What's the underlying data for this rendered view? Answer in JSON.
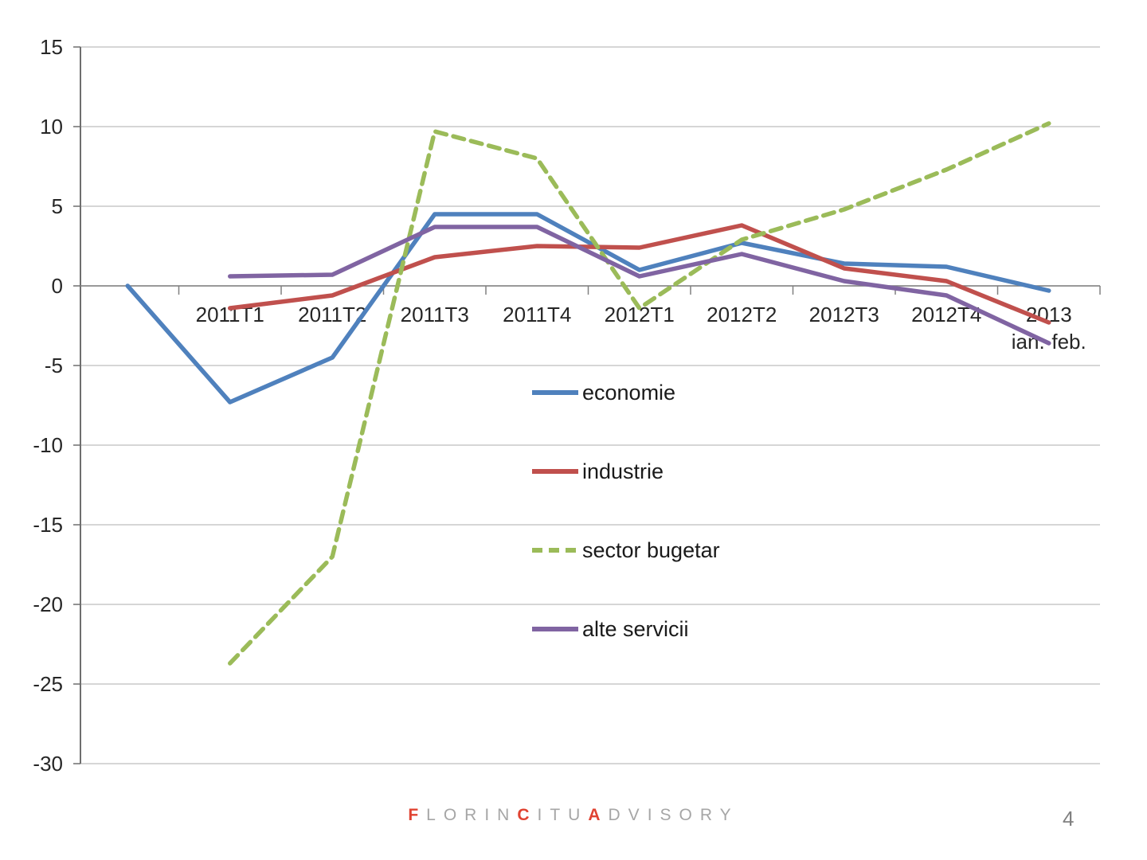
{
  "chart_data": {
    "type": "line",
    "categories": [
      "",
      "2011T1",
      "2011T2",
      "2011T3",
      "2011T4",
      "2012T1",
      "2012T2",
      "2012T3",
      "2012T4",
      "2013 ian.-feb."
    ],
    "series": [
      {
        "name": "economie",
        "color": "#4F81BD",
        "dashed": false,
        "values": [
          0,
          -7.3,
          -4.5,
          4.5,
          4.5,
          1.0,
          2.7,
          1.4,
          1.2,
          -0.3
        ]
      },
      {
        "name": "industrie",
        "color": "#C0504D",
        "dashed": false,
        "values": [
          null,
          -1.4,
          -0.6,
          1.8,
          2.5,
          2.4,
          3.8,
          1.1,
          0.3,
          -2.3
        ]
      },
      {
        "name": "sector bugetar",
        "color": "#9BBB59",
        "dashed": true,
        "values": [
          null,
          -23.7,
          -17.0,
          9.7,
          8.0,
          -1.4,
          2.9,
          4.8,
          7.3,
          10.2
        ]
      },
      {
        "name": "alte servicii",
        "color": "#8064A2",
        "dashed": false,
        "values": [
          null,
          0.6,
          0.7,
          3.7,
          3.7,
          0.6,
          2.0,
          0.3,
          -0.6,
          -3.6
        ]
      }
    ],
    "ylim": [
      -30,
      15
    ],
    "ytick_step": 5,
    "yticks": [
      15,
      10,
      5,
      0,
      -5,
      -10,
      -15,
      -20,
      -25,
      -30
    ],
    "grid": "horizontal",
    "legend_position": "inside-middle",
    "axis_text_color": "#262626",
    "gridline_color": "#C9C9C9",
    "axis_line_color": "#808080"
  },
  "footer": {
    "accent_color": "#E04332",
    "text_color": "#A6A6A6",
    "segments": [
      {
        "text": "F",
        "emphasis": true
      },
      {
        "text": "LORIN",
        "emphasis": false
      },
      {
        "text": "C",
        "emphasis": true
      },
      {
        "text": "ITU",
        "emphasis": false
      },
      {
        "text": "A",
        "emphasis": true
      },
      {
        "text": "DVISORY",
        "emphasis": false
      }
    ]
  },
  "page": {
    "number": "4"
  }
}
